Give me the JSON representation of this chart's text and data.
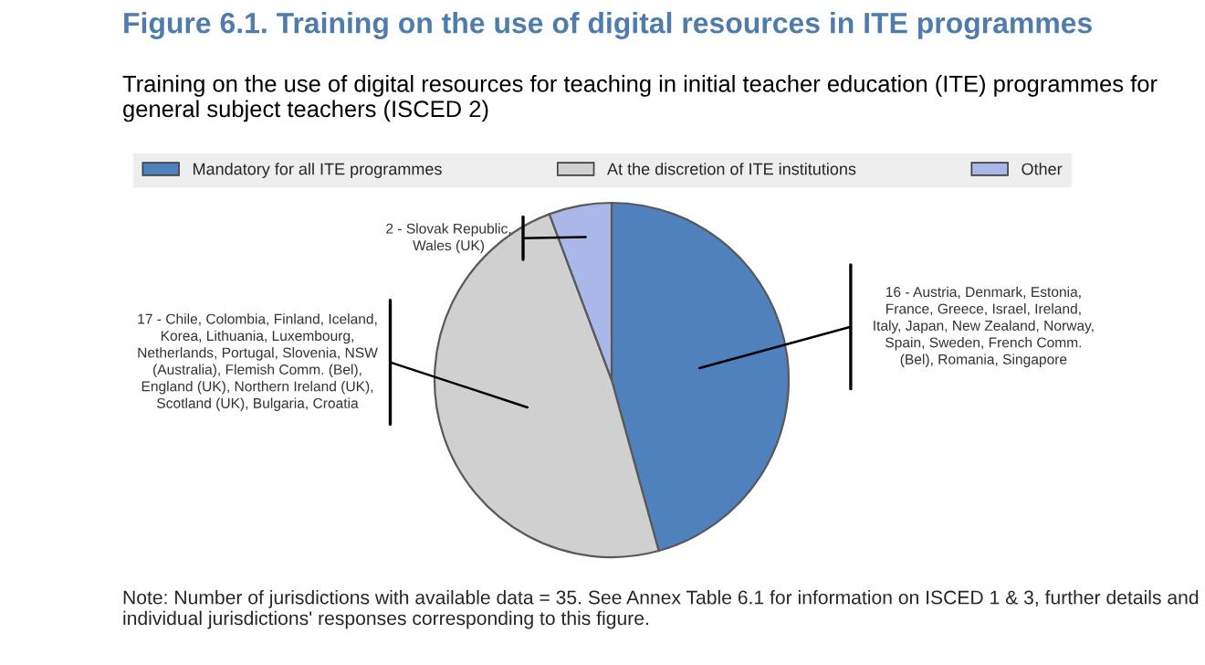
{
  "chart_data": {
    "type": "pie",
    "title": "Figure 6.1. Training on the use of digital resources in ITE programmes",
    "subtitle": "Training on the use of digital resources for teaching in initial teacher education (ITE) programmes for general subject teachers (ISCED 2)",
    "categories": [
      "Mandatory for all ITE programmes",
      "At the discretion of ITE institutions",
      "Other"
    ],
    "values": [
      16,
      17,
      2
    ],
    "colors": [
      "#4f81bd",
      "#d0d0d0",
      "#a9b8e8"
    ],
    "value_labels": [
      "16 - Austria, Denmark, Estonia,\nFrance, Greece, Israel, Ireland,\nItaly, Japan, New Zealand, Norway,\nSpain, Sweden, French Comm.\n(Bel), Romania, Singapore",
      "17 - Chile, Colombia, Finland, Iceland,\nKorea, Lithuania, Luxembourg,\nNetherlands, Portugal, Slovenia, NSW\n(Australia), Flemish Comm. (Bel),\nEngland (UK), Northern Ireland (UK),\nScotland (UK), Bulgaria, Croatia",
      "2 - Slovak Republic,\nWales (UK)"
    ],
    "legend": "top",
    "annotations": [
      "Note: Number of jurisdictions with available data = 35. See Annex Table 6.1 for information on ISCED 1 & 3, further details and individual jurisdictions' responses corresponding to this figure."
    ]
  }
}
